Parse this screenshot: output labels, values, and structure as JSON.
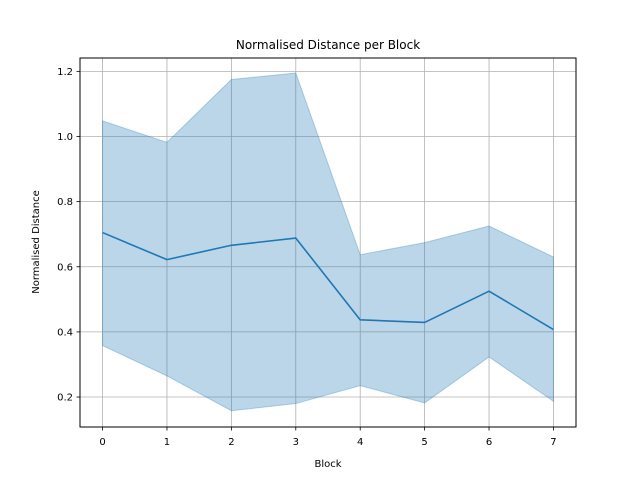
{
  "chart_data": {
    "type": "line",
    "title": "Normalised Distance per Block",
    "xlabel": "Block",
    "ylabel": "Normalised Distance",
    "x": [
      0,
      1,
      2,
      3,
      4,
      5,
      6,
      7
    ],
    "xticks": [
      "0",
      "1",
      "2",
      "3",
      "4",
      "5",
      "6",
      "7"
    ],
    "yticks": [
      "0.2",
      "0.4",
      "0.6",
      "0.8",
      "1.0",
      "1.2"
    ],
    "xlim": [
      -0.35,
      7.35
    ],
    "ylim": [
      0.108,
      1.241
    ],
    "grid": true,
    "series": [
      {
        "values": [
          0.705,
          0.622,
          0.666,
          0.688,
          0.437,
          0.429,
          0.525,
          0.407
        ],
        "band_upper": [
          1.048,
          0.982,
          1.175,
          1.195,
          0.637,
          0.674,
          0.725,
          0.63
        ],
        "band_lower": [
          0.358,
          0.265,
          0.158,
          0.18,
          0.235,
          0.182,
          0.323,
          0.187
        ]
      }
    ],
    "colors": {
      "line": "#1f77b4",
      "band": "#1f77b4",
      "grid": "#b0b0b0"
    }
  }
}
